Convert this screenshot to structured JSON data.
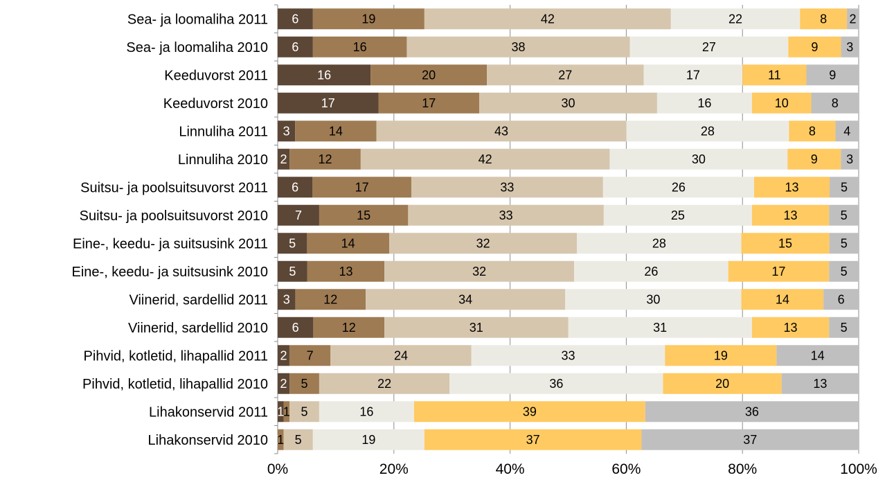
{
  "chart_data": {
    "type": "bar",
    "orientation": "horizontal",
    "stacked": "percent",
    "categories": [
      "Sea- ja loomaliha 2011",
      "Sea- ja loomaliha 2010",
      "Keeduvorst 2011",
      "Keeduvorst 2010",
      "Linnuliha 2011",
      "Linnuliha 2010",
      "Suitsu- ja poolsuitsuvorst 2011",
      "Suitsu- ja poolsuitsuvorst 2010",
      "Eine-, keedu- ja suitsusink 2011",
      "Eine-, keedu- ja suitsusink 2010",
      "Viinerid, sardellid 2011",
      "Viinerid, sardellid 2010",
      "Pihvid, kotletid, lihapallid 2011",
      "Pihvid, kotletid, lihapallid 2010",
      "Lihakonservid 2011",
      "Lihakonservid 2010"
    ],
    "series": [
      {
        "color": "#5c4635",
        "label_color": "#ffffff",
        "values": [
          6,
          6,
          16,
          17,
          3,
          2,
          6,
          7,
          5,
          5,
          3,
          6,
          2,
          2,
          1,
          0
        ]
      },
      {
        "color": "#9e7b53",
        "label_color": "#000000",
        "values": [
          19,
          16,
          20,
          17,
          14,
          12,
          17,
          15,
          14,
          13,
          12,
          12,
          7,
          5,
          1,
          1
        ]
      },
      {
        "color": "#d6c6ae",
        "label_color": "#000000",
        "values": [
          42,
          38,
          27,
          30,
          43,
          42,
          33,
          33,
          32,
          32,
          34,
          31,
          24,
          22,
          5,
          5
        ]
      },
      {
        "color": "#ecebe3",
        "label_color": "#000000",
        "values": [
          22,
          27,
          17,
          16,
          28,
          30,
          26,
          25,
          28,
          26,
          30,
          31,
          33,
          36,
          16,
          19
        ]
      },
      {
        "color": "#ffca62",
        "label_color": "#000000",
        "values": [
          8,
          9,
          11,
          10,
          8,
          9,
          13,
          13,
          15,
          17,
          14,
          13,
          19,
          20,
          39,
          37
        ]
      },
      {
        "color": "#bfbfbf",
        "label_color": "#000000",
        "values": [
          2,
          3,
          9,
          8,
          4,
          3,
          5,
          5,
          5,
          5,
          6,
          5,
          14,
          13,
          36,
          37
        ]
      }
    ],
    "segment_labels": [
      [
        "6",
        "19",
        "42",
        "22",
        "8",
        "2"
      ],
      [
        "6",
        "16",
        "38",
        "27",
        "9",
        "3"
      ],
      [
        "16",
        "20",
        "27",
        "17",
        "11",
        "9"
      ],
      [
        "17",
        "17",
        "30",
        "16",
        "10",
        "8"
      ],
      [
        "3",
        "14",
        "43",
        "28",
        "8",
        "4"
      ],
      [
        "2",
        "12",
        "42",
        "30",
        "9",
        "3"
      ],
      [
        "6",
        "17",
        "33",
        "26",
        "13",
        "5"
      ],
      [
        "7",
        "15",
        "33",
        "25",
        "13",
        "5"
      ],
      [
        "5",
        "14",
        "32",
        "28",
        "15",
        "5"
      ],
      [
        "5",
        "13",
        "32",
        "26",
        "17",
        "5"
      ],
      [
        "3",
        "12",
        "34",
        "30",
        "14",
        "6"
      ],
      [
        "6",
        "12",
        "31",
        "31",
        "13",
        "5"
      ],
      [
        "2",
        "7",
        "24",
        "33",
        "19",
        "14"
      ],
      [
        "2",
        "5",
        "22",
        "36",
        "20",
        "13"
      ],
      [
        "1",
        "1",
        "5",
        "16",
        "39",
        "36"
      ],
      [
        "0",
        "1",
        "5",
        "19",
        "37",
        "37"
      ]
    ],
    "x_ticks": [
      "0%",
      "20%",
      "40%",
      "60%",
      "80%",
      "100%"
    ],
    "xlim": [
      0,
      100
    ],
    "grid": true,
    "legend": "none"
  }
}
